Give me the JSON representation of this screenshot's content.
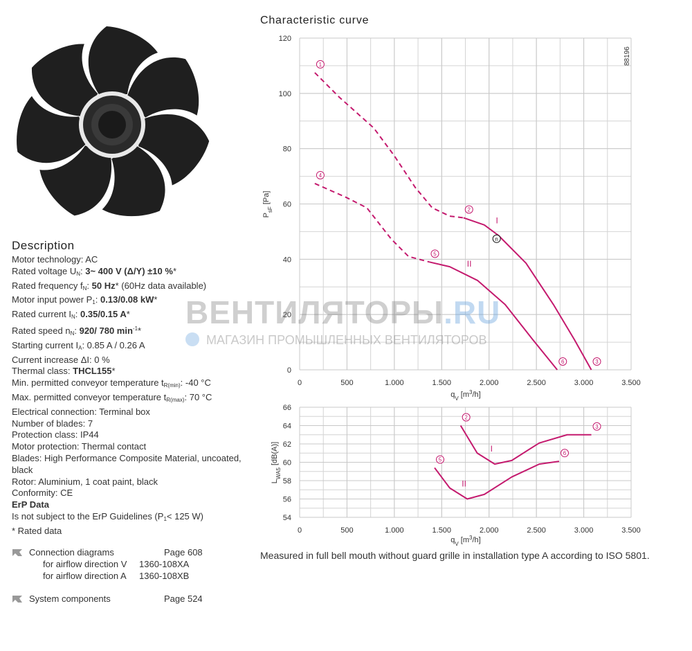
{
  "description": {
    "heading": "Description",
    "lines": [
      [
        "Motor technology: AC"
      ],
      [
        "Rated voltage U",
        {
          "t": "N",
          "f": "sub"
        },
        ": ",
        {
          "t": "3~ 400 V (Δ/Y) ±10 %",
          "f": "b"
        },
        "*"
      ],
      [
        "Rated frequency f",
        {
          "t": "N",
          "f": "sub"
        },
        ": ",
        {
          "t": "50 Hz",
          "f": "b"
        },
        "* (60Hz data available)"
      ],
      [
        "Motor input power P",
        {
          "t": "1",
          "f": "sub"
        },
        ": ",
        {
          "t": "0.13/0.08 kW",
          "f": "b"
        },
        "*"
      ],
      [
        "Rated current I",
        {
          "t": "N",
          "f": "sub"
        },
        ": ",
        {
          "t": "0.35/0.15 A",
          "f": "b"
        },
        "*"
      ],
      [
        "Rated speed n",
        {
          "t": "N",
          "f": "sub"
        },
        ": ",
        {
          "t": "920/ 780 min",
          "f": "b"
        },
        {
          "t": "-1",
          "f": "sup"
        },
        "*"
      ],
      [
        "Starting current I",
        {
          "t": "A",
          "f": "sub"
        },
        ": 0.85 A / 0.26 A"
      ],
      [
        "Current increase ΔI: 0 %"
      ],
      [
        "Thermal class: ",
        {
          "t": "THCL155",
          "f": "b"
        },
        "*"
      ],
      [
        "Min. permitted conveyor temperature t",
        {
          "t": "R(min)",
          "f": "sub"
        },
        ": -40 °C"
      ],
      [
        "Max. permitted conveyor temperature t",
        {
          "t": "R(max)",
          "f": "sub"
        },
        ": 70 °C"
      ],
      [
        "Electrical connection: Terminal box"
      ],
      [
        "Number of blades: 7"
      ],
      [
        "Protection class: IP44"
      ],
      [
        "Motor protection: Thermal contact"
      ],
      [
        "Blades: High Performance Composite Material, uncoated, black"
      ],
      [
        "Rotor: Aluminium, 1 coat paint, black"
      ],
      [
        "Conformity:  CE"
      ],
      [
        {
          "t": "ErP Data",
          "f": "b"
        }
      ],
      [
        "Is not subject to the ErP Guidelines (P",
        {
          "t": "1",
          "f": "sub"
        },
        "< 125 W)"
      ],
      [
        "* Rated data"
      ]
    ]
  },
  "links": [
    {
      "title": "Connection diagrams",
      "page": "Page 608",
      "items": [
        {
          "label": "for airflow direction V",
          "code": "1360-108XA"
        },
        {
          "label": "for airflow direction A",
          "code": "1360-108XB"
        }
      ]
    },
    {
      "title": "System components",
      "page": "Page 524"
    }
  ],
  "watermark": {
    "brand": "ВЕНТИЛЯТОРЫ",
    "domain": ".RU",
    "tagline": "МАГАЗИН ПРОМЫШЛЕННЫХ ВЕНТИЛЯТОРОВ"
  },
  "curve_section": {
    "title": "Characteristic curve",
    "code": "88196",
    "note": "Measured in full bell mouth without guard grille in installation type A according to ISO 5801."
  },
  "chart_data": [
    {
      "type": "line",
      "x_label": [
        "q",
        {
          "t": "V",
          "f": "sub"
        },
        " [m",
        {
          "t": "3",
          "f": "sup"
        },
        "/h]"
      ],
      "y_label": [
        "P",
        {
          "t": "sF",
          "f": "sub"
        },
        " [Pa]"
      ],
      "xlim": [
        0,
        3500
      ],
      "xticks": [
        0,
        500,
        {
          "value": 1000,
          "label": "1.000"
        },
        {
          "value": 1500,
          "label": "1.500"
        },
        {
          "value": 2000,
          "label": "2.000"
        },
        {
          "value": 2500,
          "label": "2.500"
        },
        {
          "value": 3000,
          "label": "3.000"
        },
        {
          "value": 3500,
          "label": "3.500"
        }
      ],
      "ylim": [
        0,
        120
      ],
      "yticks": [
        0,
        20,
        40,
        60,
        80,
        100,
        120
      ],
      "grid": true,
      "grid_x_step": 250,
      "grid_y_step": 10,
      "series": [
        {
          "name": "I",
          "color": "#c41a6e",
          "x": [
            1730,
            1950,
            2100,
            2390,
            2680,
            2900,
            3080
          ],
          "values": [
            55,
            52.4,
            48.6,
            38.6,
            23.6,
            11,
            0
          ]
        },
        {
          "name": "II",
          "color": "#c41a6e",
          "x": [
            1370,
            1585,
            1880,
            2170,
            2460,
            2720
          ],
          "values": [
            39,
            37.3,
            32.3,
            23.6,
            11,
            0
          ]
        },
        {
          "color": "#c41a6e",
          "dashed": true,
          "x": [
            160,
            416,
            782,
            1000,
            1220,
            1400,
            1585,
            1730
          ],
          "values": [
            107.5,
            98.7,
            87.5,
            77.4,
            66,
            58.6,
            55.6,
            55
          ]
        },
        {
          "color": "#c41a6e",
          "dashed": true,
          "x": [
            160,
            490,
            710,
            965,
            1150,
            1370
          ],
          "values": [
            67.4,
            62.4,
            58.6,
            47.4,
            41,
            39
          ]
        }
      ],
      "points": [
        {
          "label": "1",
          "x": 160,
          "y": 107.5
        },
        {
          "label": "2",
          "x": 1730,
          "y": 55
        },
        {
          "label": "3",
          "x": 3080,
          "y": 0
        },
        {
          "label": "4",
          "x": 160,
          "y": 67.4
        },
        {
          "label": "5",
          "x": 1370,
          "y": 39
        },
        {
          "label": "6",
          "x": 2720,
          "y": 0
        },
        {
          "label": "n",
          "x": 2080,
          "y": 47.4,
          "kind": "operating"
        }
      ]
    },
    {
      "type": "line",
      "x_label": [
        "q",
        {
          "t": "V",
          "f": "sub"
        },
        " [m",
        {
          "t": "3",
          "f": "sup"
        },
        "/h]"
      ],
      "y_label": [
        "L",
        {
          "t": "WA5",
          "f": "sub"
        },
        " [dB(A)]"
      ],
      "xlim": [
        0,
        3500
      ],
      "xticks": [
        0,
        500,
        {
          "value": 1000,
          "label": "1.000"
        },
        {
          "value": 1500,
          "label": "1.500"
        },
        {
          "value": 2000,
          "label": "2.000"
        },
        {
          "value": 2500,
          "label": "2.500"
        },
        {
          "value": 3000,
          "label": "3.000"
        },
        {
          "value": 3500,
          "label": "3.500"
        }
      ],
      "ylim": [
        54,
        66
      ],
      "yticks": [
        54,
        56,
        58,
        60,
        62,
        64,
        66
      ],
      "grid": true,
      "grid_x_step": 250,
      "grid_y_step": 1,
      "series": [
        {
          "name": "I",
          "color": "#c41a6e",
          "x": [
            1700,
            1875,
            2060,
            2240,
            2530,
            2825,
            3080
          ],
          "values": [
            64,
            61,
            59.8,
            60.2,
            62.1,
            63,
            63
          ]
        },
        {
          "name": "II",
          "color": "#c41a6e",
          "x": [
            1425,
            1585,
            1770,
            1950,
            2240,
            2530,
            2740
          ],
          "values": [
            59.4,
            57.2,
            56,
            56.5,
            58.4,
            59.8,
            60.1
          ]
        }
      ],
      "points": [
        {
          "label": "2",
          "x": 1700,
          "y": 64
        },
        {
          "label": "3",
          "x": 3080,
          "y": 63
        },
        {
          "label": "5",
          "x": 1425,
          "y": 59.4
        },
        {
          "label": "6",
          "x": 2740,
          "y": 60.1
        }
      ]
    }
  ]
}
